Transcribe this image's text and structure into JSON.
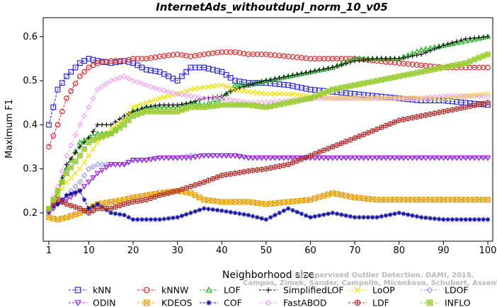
{
  "chart_data": {
    "type": "line",
    "title": "InternetAds_withoutdupl_norm_10_v05",
    "xlabel": "Neighborhood size",
    "ylabel": "Maximum F1",
    "xlim": [
      1,
      100
    ],
    "ylim": [
      0.17,
      0.65
    ],
    "xticks": [
      1,
      10,
      20,
      30,
      40,
      50,
      60,
      70,
      80,
      90,
      100
    ],
    "yticks": [
      0.2,
      0.3,
      0.4,
      0.5,
      0.6
    ],
    "grid": false,
    "legend_position": "bottom",
    "anchors": [
      1,
      3,
      5,
      8,
      10,
      12,
      15,
      18,
      20,
      23,
      26,
      30,
      33,
      36,
      40,
      43,
      46,
      50,
      55,
      60,
      65,
      70,
      75,
      80,
      85,
      90,
      95,
      100
    ],
    "series": [
      {
        "name": "kNN",
        "color": "#2a2ad6",
        "marker": "square",
        "values": [
          0.4,
          0.48,
          0.51,
          0.54,
          0.55,
          0.545,
          0.54,
          0.545,
          0.54,
          0.525,
          0.52,
          0.5,
          0.53,
          0.53,
          0.52,
          0.5,
          0.495,
          0.495,
          0.49,
          0.48,
          0.475,
          0.47,
          0.465,
          0.46,
          0.455,
          0.455,
          0.45,
          0.445
        ]
      },
      {
        "name": "kNNW",
        "color": "#d62a2a",
        "marker": "circle",
        "values": [
          0.35,
          0.4,
          0.46,
          0.51,
          0.53,
          0.54,
          0.545,
          0.545,
          0.55,
          0.55,
          0.555,
          0.56,
          0.555,
          0.56,
          0.565,
          0.565,
          0.56,
          0.56,
          0.555,
          0.55,
          0.55,
          0.55,
          0.545,
          0.54,
          0.535,
          0.53,
          0.53,
          0.53
        ]
      },
      {
        "name": "LOF",
        "color": "#22b422",
        "marker": "triangle",
        "values": [
          0.21,
          0.24,
          0.3,
          0.36,
          0.37,
          0.38,
          0.38,
          0.41,
          0.43,
          0.44,
          0.44,
          0.44,
          0.45,
          0.445,
          0.46,
          0.49,
          0.49,
          0.5,
          0.51,
          0.52,
          0.53,
          0.55,
          0.55,
          0.55,
          0.57,
          0.58,
          0.59,
          0.6
        ]
      },
      {
        "name": "SimplifiedLOF",
        "color": "#111111",
        "marker": "plus",
        "values": [
          0.2,
          0.25,
          0.31,
          0.35,
          0.37,
          0.4,
          0.4,
          0.42,
          0.43,
          0.44,
          0.445,
          0.445,
          0.45,
          0.46,
          0.465,
          0.48,
          0.49,
          0.5,
          0.51,
          0.52,
          0.53,
          0.545,
          0.55,
          0.55,
          0.56,
          0.58,
          0.595,
          0.6
        ]
      },
      {
        "name": "LoOP",
        "color": "#f0e000",
        "marker": "cross",
        "values": [
          0.21,
          0.24,
          0.27,
          0.3,
          0.33,
          0.36,
          0.39,
          0.41,
          0.44,
          0.45,
          0.46,
          0.47,
          0.48,
          0.485,
          0.49,
          0.48,
          0.475,
          0.47,
          0.47,
          0.465,
          0.46,
          0.46,
          0.46,
          0.46,
          0.46,
          0.46,
          0.465,
          0.47
        ]
      },
      {
        "name": "LDOF",
        "color": "#a0a0e0",
        "marker": "diamond",
        "values": [
          0.2,
          0.22,
          0.24,
          0.27,
          0.3,
          0.31,
          0.31,
          0.31,
          0.32,
          0.32,
          0.325,
          0.325,
          0.33,
          0.33,
          0.33,
          0.33,
          0.325,
          0.325,
          0.325,
          0.325,
          0.325,
          0.325,
          0.325,
          0.325,
          0.325,
          0.325,
          0.325,
          0.325
        ]
      },
      {
        "name": "ODIN",
        "color": "#9a22d6",
        "marker": "triangle-down",
        "values": [
          0.2,
          0.22,
          0.23,
          0.25,
          0.27,
          0.29,
          0.31,
          0.31,
          0.32,
          0.32,
          0.325,
          0.325,
          0.325,
          0.33,
          0.33,
          0.33,
          0.325,
          0.325,
          0.325,
          0.325,
          0.325,
          0.325,
          0.325,
          0.325,
          0.325,
          0.325,
          0.325,
          0.325
        ]
      },
      {
        "name": "KDEOS",
        "color": "#e6a000",
        "marker": "box-x",
        "values": [
          0.19,
          0.185,
          0.19,
          0.2,
          0.21,
          0.22,
          0.225,
          0.23,
          0.235,
          0.24,
          0.245,
          0.25,
          0.245,
          0.23,
          0.225,
          0.225,
          0.225,
          0.22,
          0.225,
          0.23,
          0.245,
          0.235,
          0.23,
          0.23,
          0.23,
          0.23,
          0.23,
          0.23
        ]
      },
      {
        "name": "COF",
        "color": "#1010a0",
        "marker": "asterisk",
        "values": [
          0.21,
          0.22,
          0.24,
          0.25,
          0.21,
          0.22,
          0.2,
          0.195,
          0.185,
          0.185,
          0.185,
          0.19,
          0.2,
          0.21,
          0.205,
          0.2,
          0.195,
          0.185,
          0.21,
          0.19,
          0.2,
          0.19,
          0.19,
          0.2,
          0.19,
          0.185,
          0.185,
          0.185
        ]
      },
      {
        "name": "FastABOD",
        "color": "#f0a8f0",
        "marker": "diamond",
        "values": [
          0.21,
          0.26,
          0.33,
          0.4,
          0.44,
          0.48,
          0.5,
          0.51,
          0.5,
          0.49,
          0.48,
          0.47,
          0.465,
          0.46,
          0.46,
          0.455,
          0.45,
          0.45,
          0.455,
          0.46,
          0.46,
          0.46,
          0.46,
          0.46,
          0.46,
          0.465,
          0.465,
          0.465
        ]
      },
      {
        "name": "LDF",
        "color": "#b03030",
        "marker": "circle-plus",
        "values": [
          0.21,
          0.23,
          0.22,
          0.21,
          0.2,
          0.21,
          0.21,
          0.22,
          0.225,
          0.23,
          0.24,
          0.25,
          0.26,
          0.27,
          0.285,
          0.29,
          0.295,
          0.3,
          0.31,
          0.33,
          0.35,
          0.37,
          0.39,
          0.41,
          0.42,
          0.43,
          0.44,
          0.45
        ]
      },
      {
        "name": "INFLO",
        "color": "#9acd32",
        "marker": "box-star",
        "values": [
          0.21,
          0.25,
          0.29,
          0.33,
          0.36,
          0.37,
          0.38,
          0.4,
          0.42,
          0.43,
          0.43,
          0.43,
          0.44,
          0.44,
          0.445,
          0.445,
          0.445,
          0.44,
          0.45,
          0.46,
          0.48,
          0.49,
          0.5,
          0.51,
          0.52,
          0.53,
          0.54,
          0.56
        ]
      }
    ]
  },
  "watermark": {
    "line1": "Unsupervised Outlier Detection. DAMI, 2015.",
    "line2": "Campos, Zimek, Sander, Campello, Micenkova, Schubert, Assent, Houle"
  }
}
